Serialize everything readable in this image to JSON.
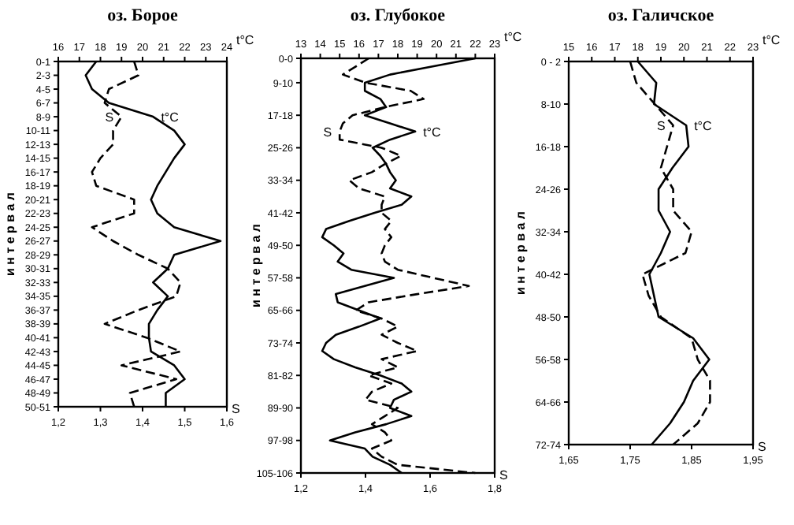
{
  "chart_data": [
    {
      "type": "line",
      "orientation": "horizontal",
      "title": "оз. Борое",
      "ylabel": "и н т е р в а л",
      "xlabel": "S",
      "x2label": "t°C",
      "categories": [
        "0-1",
        "2-3",
        "4-5",
        "6-7",
        "8-9",
        "10-11",
        "12-13",
        "14-15",
        "16-17",
        "18-19",
        "20-21",
        "22-23",
        "24-25",
        "26-27",
        "28-29",
        "30-31",
        "32-33",
        "34-35",
        "36-37",
        "38-39",
        "40-41",
        "42-43",
        "44-45",
        "46-47",
        "48-49",
        "50-51"
      ],
      "xlim": [
        1.2,
        1.6
      ],
      "xticks": [
        {
          "value": 1.2,
          "label": "1,2"
        },
        {
          "value": 1.3,
          "label": "1,3"
        },
        {
          "value": 1.4,
          "label": "1,4"
        },
        {
          "value": 1.5,
          "label": "1,5"
        },
        {
          "value": 1.6,
          "label": "1,6"
        }
      ],
      "x2lim": [
        16,
        24
      ],
      "x2ticks": [
        16,
        17,
        18,
        19,
        20,
        21,
        22,
        23,
        24
      ],
      "series": [
        {
          "name": "S",
          "color": "#000000",
          "line_style": "dashed",
          "values": [
            1.38,
            1.39,
            1.32,
            1.31,
            1.35,
            1.33,
            1.33,
            1.3,
            1.28,
            1.29,
            1.38,
            1.38,
            1.28,
            1.33,
            1.39,
            1.46,
            1.49,
            1.48,
            1.39,
            1.31,
            1.41,
            1.49,
            1.35,
            1.48,
            1.37,
            1.38
          ]
        },
        {
          "name": "t°C",
          "color": "#000000",
          "line_style": "solid",
          "axis": "x2",
          "values": [
            17.8,
            17.3,
            17.6,
            18.4,
            20.5,
            21.5,
            22.0,
            21.5,
            21.1,
            20.7,
            20.4,
            20.7,
            21.5,
            23.7,
            21.5,
            21.2,
            20.5,
            21.2,
            20.7,
            20.3,
            20.3,
            20.4,
            21.5,
            22.0,
            21.1,
            21.1
          ]
        }
      ]
    },
    {
      "type": "line",
      "orientation": "horizontal",
      "title": "оз. Глубокое",
      "ylabel": "и н т е р в а л",
      "xlabel": "S",
      "x2label": "t°C",
      "categories": [
        "0-0",
        null,
        null,
        "9-10",
        null,
        null,
        null,
        "17-18",
        null,
        null,
        null,
        "25-26",
        null,
        null,
        null,
        "33-34",
        null,
        null,
        null,
        "41-42",
        null,
        null,
        null,
        "49-50",
        null,
        null,
        null,
        "57-58",
        null,
        null,
        null,
        "65-66",
        null,
        null,
        null,
        "73-74",
        null,
        null,
        null,
        "81-82",
        null,
        null,
        null,
        "89-90",
        null,
        null,
        null,
        "97-98",
        null,
        null,
        null,
        "105-106"
      ],
      "xlim": [
        1.2,
        1.8
      ],
      "xticks": [
        {
          "value": 1.2,
          "label": "1,2"
        },
        {
          "value": 1.4,
          "label": "1,4"
        },
        {
          "value": 1.6,
          "label": "1,6"
        },
        {
          "value": 1.8,
          "label": "1,8"
        }
      ],
      "x2lim": [
        13,
        23
      ],
      "x2ticks": [
        13,
        14,
        15,
        16,
        17,
        18,
        19,
        20,
        21,
        22,
        23
      ],
      "series": [
        {
          "name": "S",
          "color": "#000000",
          "line_style": "dashed",
          "values": [
            1.41,
            1.37,
            1.33,
            1.4,
            1.54,
            1.58,
            1.46,
            1.36,
            1.33,
            1.32,
            1.32,
            1.45,
            1.51,
            1.46,
            1.42,
            1.35,
            1.38,
            1.46,
            1.45,
            1.45,
            1.48,
            1.46,
            1.48,
            1.46,
            1.45,
            1.46,
            1.5,
            1.61,
            1.72,
            1.56,
            1.41,
            1.37,
            1.45,
            1.5,
            1.45,
            1.5,
            1.56,
            1.45,
            1.5,
            1.41,
            1.48,
            1.42,
            1.4,
            1.5,
            1.46,
            1.42,
            1.46,
            1.48,
            1.42,
            1.45,
            1.5,
            1.74
          ]
        },
        {
          "name": "t°C",
          "color": "#000000",
          "line_style": "solid",
          "axis": "x2",
          "values": [
            22.0,
            19.8,
            17.6,
            16.3,
            16.3,
            17.1,
            17.4,
            16.3,
            17.6,
            18.9,
            17.6,
            16.7,
            17.1,
            17.4,
            17.6,
            17.9,
            17.6,
            18.7,
            18.2,
            16.8,
            15.5,
            14.3,
            14.1,
            14.7,
            15.2,
            14.9,
            15.6,
            17.8,
            16.3,
            14.8,
            14.9,
            16.0,
            17.1,
            16.0,
            14.8,
            14.3,
            14.1,
            14.7,
            15.8,
            17.1,
            18.2,
            18.7,
            17.8,
            17.6,
            18.7,
            17.4,
            15.8,
            14.5,
            16.3,
            16.7,
            17.6,
            18.2
          ]
        }
      ]
    },
    {
      "type": "line",
      "orientation": "horizontal",
      "title": "оз. Галичское",
      "ylabel": "и н т е р в а л",
      "xlabel": "S",
      "x2label": "t°C",
      "categories": [
        "0 - 2",
        null,
        "8-10",
        null,
        "16-18",
        null,
        "24-26",
        null,
        "32-34",
        null,
        "40-42",
        null,
        "48-50",
        null,
        "56-58",
        null,
        "64-66",
        null,
        "72-74"
      ],
      "xlim": [
        1.65,
        1.95
      ],
      "xticks": [
        {
          "value": 1.65,
          "label": "1,65"
        },
        {
          "value": 1.75,
          "label": "1,75"
        },
        {
          "value": 1.85,
          "label": "1,85"
        },
        {
          "value": 1.95,
          "label": "1,95"
        }
      ],
      "x2lim": [
        15,
        23
      ],
      "x2ticks": [
        15,
        16,
        17,
        18,
        19,
        20,
        21,
        22,
        23
      ],
      "series": [
        {
          "name": "S",
          "color": "#000000",
          "line_style": "dashed",
          "values": [
            1.75,
            1.76,
            1.79,
            1.82,
            1.81,
            1.8,
            1.82,
            1.82,
            1.85,
            1.84,
            1.77,
            1.78,
            1.8,
            1.85,
            1.86,
            1.88,
            1.88,
            1.86,
            1.82
          ]
        },
        {
          "name": "t°C",
          "color": "#000000",
          "line_style": "solid",
          "axis": "x2",
          "values": [
            18.0,
            18.8,
            18.7,
            20.1,
            20.2,
            19.5,
            18.9,
            18.9,
            19.4,
            19.0,
            18.5,
            18.7,
            18.9,
            20.4,
            21.1,
            20.4,
            20.0,
            19.4,
            18.6
          ]
        }
      ]
    }
  ]
}
